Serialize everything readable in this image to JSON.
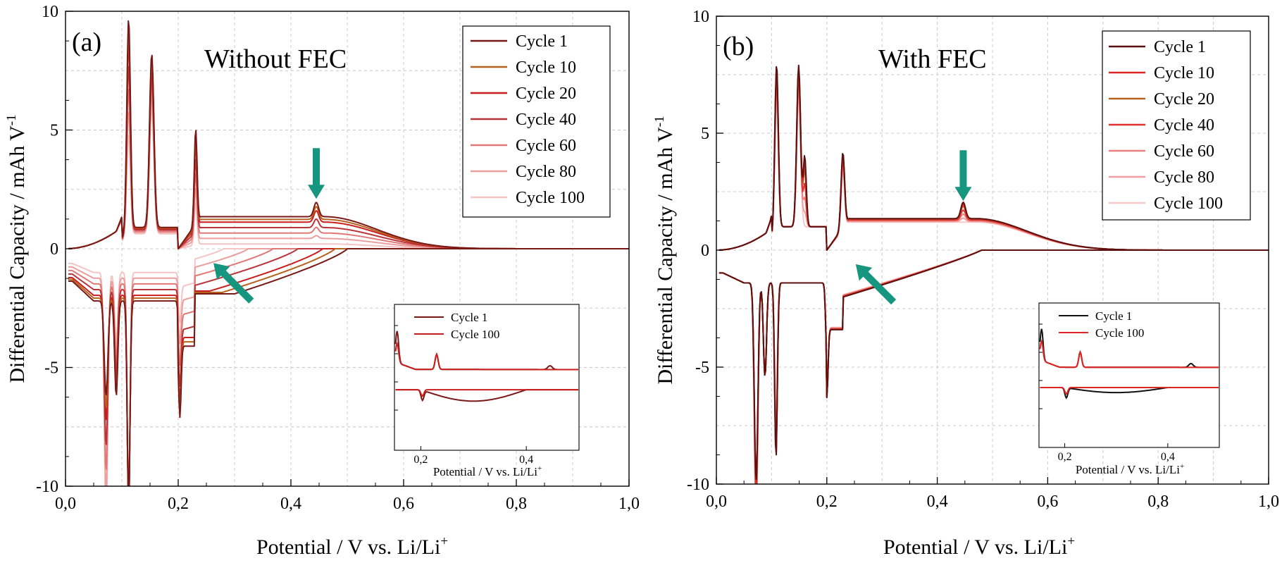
{
  "chart_data": [
    {
      "type": "line",
      "panel_label": "(a)",
      "title": "Without FEC",
      "xlabel": "Potential / V vs. Li/Li",
      "xlabel_sup": "+",
      "ylabel": "Differential Capacity / mAh V",
      "ylabel_sup": "-1",
      "xlim": [
        0.0,
        1.0
      ],
      "ylim": [
        -10,
        10
      ],
      "xticks": [
        "0,0",
        "0,2",
        "0,4",
        "0,6",
        "0,8",
        "1,0"
      ],
      "yticks": [
        "-10",
        "-5",
        "0",
        "5",
        "10"
      ],
      "grid": true,
      "legend_position": "top-right",
      "series": [
        {
          "name": "Cycle 1",
          "color": "#7a1818",
          "fade": 0.0
        },
        {
          "name": "Cycle 10",
          "color": "#b4621c",
          "fade": 0.1
        },
        {
          "name": "Cycle 20",
          "color": "#c81e1e",
          "fade": 0.2
        },
        {
          "name": "Cycle 40",
          "color": "#b8343a",
          "fade": 0.4
        },
        {
          "name": "Cycle 60",
          "color": "#e07878",
          "fade": 0.6
        },
        {
          "name": "Cycle 80",
          "color": "#eb9e9e",
          "fade": 0.8
        },
        {
          "name": "Cycle 100",
          "color": "#f5c4c4",
          "fade": 1.0
        }
      ],
      "annotations": [
        {
          "type": "arrow",
          "direction": "down",
          "x": 0.445,
          "y": 2.1
        },
        {
          "type": "arrow",
          "direction": "up-left",
          "x": 0.275,
          "y": -0.9
        }
      ],
      "inset": {
        "xticks": [
          "0,2",
          "0,4"
        ],
        "xlabel": "Potential / V vs. Li/Li",
        "xlabel_sup": "+",
        "series": [
          {
            "name": "Cycle 1",
            "color": "#7a1818"
          },
          {
            "name": "Cycle 100",
            "color": "#c81e1e"
          }
        ]
      }
    },
    {
      "type": "line",
      "panel_label": "(b)",
      "title": "With FEC",
      "xlabel": "Potential / V vs. Li/Li",
      "xlabel_sup": "+",
      "ylabel": "Differential Capacity / mAh V",
      "ylabel_sup": "-1",
      "xlim": [
        0.0,
        1.0
      ],
      "ylim": [
        -10,
        10
      ],
      "xticks": [
        "0,0",
        "0,2",
        "0,4",
        "0,6",
        "0,8",
        "1,0"
      ],
      "yticks": [
        "-10",
        "-5",
        "0",
        "5",
        "10"
      ],
      "grid": true,
      "legend_position": "top-right",
      "series": [
        {
          "name": "Cycle 1",
          "color": "#5c1010",
          "fade": 0.0
        },
        {
          "name": "Cycle 10",
          "color": "#e02424",
          "fade": 0.1
        },
        {
          "name": "Cycle 20",
          "color": "#b4621c",
          "fade": 0.2
        },
        {
          "name": "Cycle 40",
          "color": "#e53030",
          "fade": 0.4
        },
        {
          "name": "Cycle 60",
          "color": "#ee8080",
          "fade": 0.6
        },
        {
          "name": "Cycle 80",
          "color": "#f0a0a0",
          "fade": 0.8
        },
        {
          "name": "Cycle 100",
          "color": "#f7c8c8",
          "fade": 1.0
        }
      ],
      "annotations": [
        {
          "type": "arrow",
          "direction": "down",
          "x": 0.447,
          "y": 2.1
        },
        {
          "type": "arrow",
          "direction": "up-left",
          "x": 0.265,
          "y": -0.9
        }
      ],
      "inset": {
        "xticks": [
          "0,2",
          "0,4"
        ],
        "xlabel": "Potential / V vs. Li/Li",
        "xlabel_sup": "+",
        "series": [
          {
            "name": "Cycle 1",
            "color": "#111111"
          },
          {
            "name": "Cycle 100",
            "color": "#e02424"
          }
        ]
      }
    }
  ]
}
